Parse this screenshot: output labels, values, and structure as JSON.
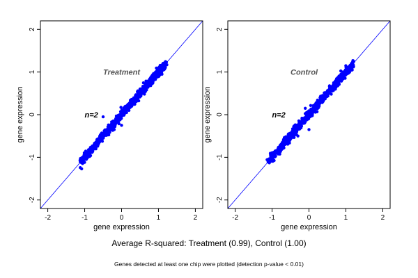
{
  "chart_data": [
    {
      "type": "scatter",
      "title": "",
      "xlabel": "gene expression",
      "ylabel": "gene expression",
      "xlim": [
        -2.2,
        2.2
      ],
      "ylim": [
        -2.2,
        2.2
      ],
      "xticks": [
        "-2",
        "-1",
        "0",
        "1",
        "2"
      ],
      "yticks": [
        "-2",
        "-1",
        "0",
        "1",
        "2"
      ],
      "grid": false,
      "point_color": "#0000ff",
      "reference_line": {
        "slope": 1,
        "intercept": 0,
        "color": "#0000ff"
      },
      "annotations": [
        {
          "text": "Treatment",
          "x": -0.5,
          "y": 1.0
        },
        {
          "text": "n=2",
          "x": -1.0,
          "y": 0.0
        }
      ],
      "trend": {
        "x_min": -1.1,
        "x_max": 1.2,
        "spread": 0.05,
        "n": 900
      },
      "outliers": [
        {
          "x": -0.5,
          "y": -0.05
        },
        {
          "x": 0.2,
          "y": 0.1
        },
        {
          "x": 0.0,
          "y": -0.25
        },
        {
          "x": -0.2,
          "y": -0.35
        },
        {
          "x": 0.5,
          "y": 0.6
        }
      ]
    },
    {
      "type": "scatter",
      "title": "",
      "xlabel": "gene expression",
      "ylabel": "gene expression",
      "xlim": [
        -2.2,
        2.2
      ],
      "ylim": [
        -2.2,
        2.2
      ],
      "xticks": [
        "-2",
        "-1",
        "0",
        "1",
        "2"
      ],
      "yticks": [
        "-2",
        "-1",
        "0",
        "1",
        "2"
      ],
      "grid": false,
      "point_color": "#0000ff",
      "reference_line": {
        "slope": 1,
        "intercept": 0,
        "color": "#0000ff"
      },
      "annotations": [
        {
          "text": "Control",
          "x": -0.5,
          "y": 1.0
        },
        {
          "text": "n=2",
          "x": -1.0,
          "y": 0.0
        }
      ],
      "trend": {
        "x_min": -1.1,
        "x_max": 1.2,
        "spread": 0.05,
        "n": 900
      },
      "outliers": [
        {
          "x": -0.1,
          "y": 0.15
        },
        {
          "x": 0.0,
          "y": -0.35
        },
        {
          "x": 0.3,
          "y": 0.4
        },
        {
          "x": -0.3,
          "y": -0.5
        }
      ]
    }
  ],
  "captions": {
    "main": "Average R-squared: Treatment (0.99), Control (1.00)",
    "sub": "Genes detected at least one chip were plotted (detection p-value < 0.01)"
  }
}
